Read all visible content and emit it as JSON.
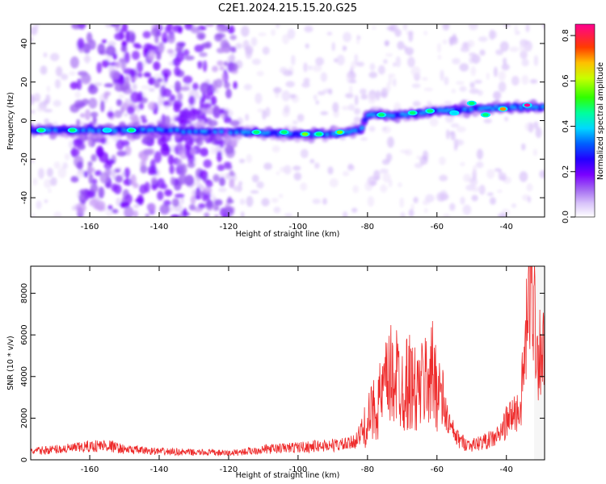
{
  "figure": {
    "title": "C2E1.2024.215.15.20.G25"
  },
  "colors": {
    "snr_line": "#ee2b2b",
    "colormap": [
      "#ffffff",
      "#e8d6fb",
      "#c8a6f7",
      "#9b5ff0",
      "#7a00ff",
      "#3a00ff",
      "#0000ff",
      "#0090ff",
      "#00f0ff",
      "#00ff70",
      "#60ff00",
      "#d8ff00",
      "#ffc800",
      "#ff5000",
      "#ff0030",
      "#ff0090"
    ]
  },
  "chart_data": [
    {
      "type": "heatmap",
      "title": "",
      "xlabel": "Height of straight line (km)",
      "ylabel": "Frequency (Hz)",
      "xlim": [
        -177,
        -29
      ],
      "ylim": [
        -50,
        50
      ],
      "xticks": [
        -160,
        -140,
        -120,
        -100,
        -80,
        -60,
        -40
      ],
      "yticks": [
        -40,
        -20,
        0,
        20,
        40
      ],
      "colorbar": {
        "label": "Normalized spectral amplitude",
        "range": [
          0,
          0.85
        ],
        "ticks": [
          "0.0",
          "0.2",
          "0.4",
          "0.6",
          "0.8"
        ]
      },
      "ridge": {
        "description_points_x": [
          -177,
          -160,
          -140,
          -125,
          -115,
          -100,
          -90,
          -82,
          -80,
          -70,
          -60,
          -50,
          -40,
          -30
        ],
        "description_points_y": [
          -5,
          -5,
          -5,
          -6,
          -6,
          -7,
          -7,
          -5,
          3,
          3,
          5,
          6,
          7,
          7
        ],
        "peak_amplitude_x": [
          -174,
          -165,
          -155,
          -148,
          -112,
          -104,
          -98,
          -94,
          -88,
          -76,
          -67,
          -62,
          -55,
          -50,
          -46,
          -41,
          -34
        ],
        "peak_amplitude_y": [
          -5,
          -5,
          -5,
          -5,
          -6,
          -6,
          -7,
          -7,
          -6,
          3,
          4,
          5,
          4,
          9,
          3,
          6,
          8
        ],
        "peak_amplitude": [
          0.45,
          0.4,
          0.35,
          0.4,
          0.45,
          0.4,
          0.5,
          0.45,
          0.5,
          0.45,
          0.4,
          0.45,
          0.35,
          0.4,
          0.45,
          0.75,
          0.85
        ]
      }
    },
    {
      "type": "line",
      "title": "",
      "xlabel": "Height of straight line (km)",
      "ylabel": "SNR (10 * v/v)",
      "xlim": [
        -177,
        -29
      ],
      "ylim": [
        0,
        9300
      ],
      "xticks": [
        -160,
        -140,
        -120,
        -100,
        -80,
        -60,
        -40
      ],
      "yticks": [
        0,
        2000,
        4000,
        6000,
        8000
      ],
      "series": [
        {
          "x": [
            -177,
            -170,
            -165,
            -160,
            -155,
            -150,
            -145,
            -140,
            -135,
            -130,
            -125,
            -120,
            -115,
            -110,
            -105,
            -100,
            -95,
            -90,
            -85,
            -82,
            -80,
            -78,
            -76,
            -74,
            -72,
            -70,
            -68,
            -66,
            -64,
            -62,
            -60,
            -58,
            -56,
            -54,
            -52,
            -50,
            -48,
            -46,
            -44,
            -42,
            -40,
            -38,
            -36,
            -34,
            -33,
            -32,
            -31,
            -30,
            -29
          ],
          "y": [
            400,
            500,
            550,
            650,
            700,
            500,
            450,
            400,
            380,
            350,
            350,
            320,
            400,
            500,
            550,
            600,
            650,
            700,
            750,
            1200,
            1800,
            2500,
            3000,
            3800,
            4200,
            3500,
            3800,
            3200,
            3600,
            4200,
            3800,
            2500,
            1500,
            1000,
            800,
            700,
            800,
            900,
            1000,
            1200,
            1800,
            2200,
            2400,
            6500,
            9000,
            7500,
            5000,
            5500,
            5000
          ]
        }
      ]
    }
  ]
}
